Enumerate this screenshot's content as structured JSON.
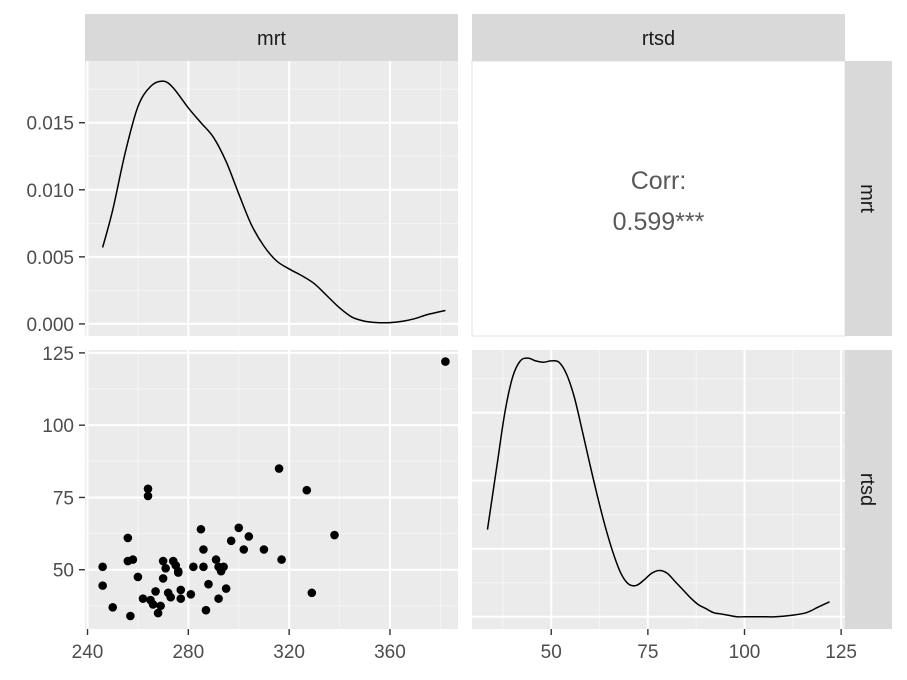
{
  "colors": {
    "panel_bg": "#ebebeb",
    "strip_bg": "#d9d9d9",
    "grid_major": "#ffffff",
    "grid_minor": "#f5f5f5",
    "ink": "#000000",
    "tick_label": "#4d4d4d",
    "corr_text": "#595959"
  },
  "strips": {
    "top": [
      "mrt",
      "rtsd"
    ],
    "right": [
      "mrt",
      "rtsd"
    ]
  },
  "axes": {
    "mrt_x": {
      "ticks": [
        240,
        280,
        320,
        360
      ],
      "labels": [
        "240",
        "280",
        "320",
        "360"
      ]
    },
    "rtsd_x": {
      "ticks": [
        50,
        75,
        100,
        125
      ],
      "labels": [
        "50",
        "75",
        "100",
        "125"
      ]
    },
    "density_y": {
      "ticks": [
        0,
        0.005,
        0.01,
        0.015
      ],
      "labels": [
        "0.000",
        "0.005",
        "0.010",
        "0.015"
      ]
    },
    "rtsd_y": {
      "ticks": [
        50,
        75,
        100,
        125
      ],
      "labels": [
        "50",
        "75",
        "100",
        "125"
      ]
    }
  },
  "correlation": {
    "label": "Corr:",
    "value": "0.599***"
  },
  "chart_data": [
    {
      "type": "line",
      "panel": "mrt density",
      "xlim": [
        239,
        387
      ],
      "ylim": [
        -0.0009,
        0.0196
      ],
      "x": [
        246,
        250,
        255,
        260,
        265,
        270,
        274,
        280,
        285,
        290,
        295,
        300,
        305,
        310,
        315,
        320,
        325,
        330,
        335,
        340,
        345,
        350,
        355,
        360,
        365,
        370,
        375,
        382
      ],
      "y": [
        0.0057,
        0.0085,
        0.0128,
        0.0162,
        0.0177,
        0.0181,
        0.0176,
        0.0161,
        0.015,
        0.0139,
        0.0121,
        0.0097,
        0.0074,
        0.0058,
        0.0047,
        0.0041,
        0.0036,
        0.003,
        0.0021,
        0.0012,
        0.0005,
        0.0002,
        0.0001,
        0.0001,
        0.0002,
        0.0004,
        0.0007,
        0.001
      ]
    },
    {
      "type": "line",
      "panel": "rtsd density",
      "xlim": [
        29.5,
        126
      ],
      "ylim": [
        -0.0009,
        0.0196
      ],
      "x": [
        33.5,
        36,
        38,
        40,
        42,
        44,
        46,
        48,
        50,
        52,
        54,
        56,
        58,
        60,
        62,
        64,
        66,
        68,
        70,
        72,
        74,
        76,
        78,
        80,
        82,
        84,
        86,
        88,
        90,
        92,
        94,
        96,
        98,
        100,
        104,
        108,
        112,
        116,
        119,
        122
      ],
      "y": [
        0.0064,
        0.0112,
        0.015,
        0.0176,
        0.0188,
        0.019,
        0.0188,
        0.0187,
        0.0188,
        0.0187,
        0.0178,
        0.0161,
        0.0137,
        0.0112,
        0.0088,
        0.0066,
        0.0047,
        0.0032,
        0.0024,
        0.0023,
        0.0027,
        0.0032,
        0.0034,
        0.0032,
        0.0026,
        0.002,
        0.0014,
        0.0009,
        0.0006,
        0.0003,
        0.0002,
        0.0001,
        0.0,
        0.0,
        0.0,
        0.0,
        0.0001,
        0.0003,
        0.0007,
        0.0011
      ]
    },
    {
      "type": "scatter",
      "panel": "rtsd vs mrt",
      "xlim": [
        239,
        387
      ],
      "ylim": [
        29.5,
        126
      ],
      "points": [
        [
          246,
          51
        ],
        [
          246,
          44.5
        ],
        [
          250,
          37
        ],
        [
          256,
          61
        ],
        [
          256,
          53
        ],
        [
          257,
          34
        ],
        [
          258,
          53.5
        ],
        [
          260,
          47.5
        ],
        [
          262,
          40
        ],
        [
          264,
          78
        ],
        [
          264,
          75.5
        ],
        [
          265,
          39.5
        ],
        [
          266,
          38
        ],
        [
          267,
          42.5
        ],
        [
          268,
          35
        ],
        [
          269,
          37.5
        ],
        [
          270,
          53
        ],
        [
          270,
          47
        ],
        [
          271,
          50.5
        ],
        [
          272,
          42
        ],
        [
          273,
          40.5
        ],
        [
          274,
          53
        ],
        [
          275,
          51.5
        ],
        [
          276,
          49.5
        ],
        [
          276,
          49
        ],
        [
          277,
          43
        ],
        [
          277,
          40
        ],
        [
          281,
          41.5
        ],
        [
          282,
          51
        ],
        [
          285,
          64
        ],
        [
          286,
          57
        ],
        [
          286,
          51
        ],
        [
          287,
          36
        ],
        [
          288,
          45
        ],
        [
          291,
          53.5
        ],
        [
          292,
          40
        ],
        [
          292,
          51
        ],
        [
          293,
          49.5
        ],
        [
          294,
          51
        ],
        [
          295,
          43.5
        ],
        [
          297,
          60
        ],
        [
          300,
          64.5
        ],
        [
          302,
          57
        ],
        [
          304,
          61.5
        ],
        [
          310,
          57
        ],
        [
          316,
          85
        ],
        [
          317,
          53.5
        ],
        [
          327,
          77.5
        ],
        [
          329,
          42
        ],
        [
          338,
          62
        ],
        [
          382,
          122
        ]
      ]
    }
  ]
}
